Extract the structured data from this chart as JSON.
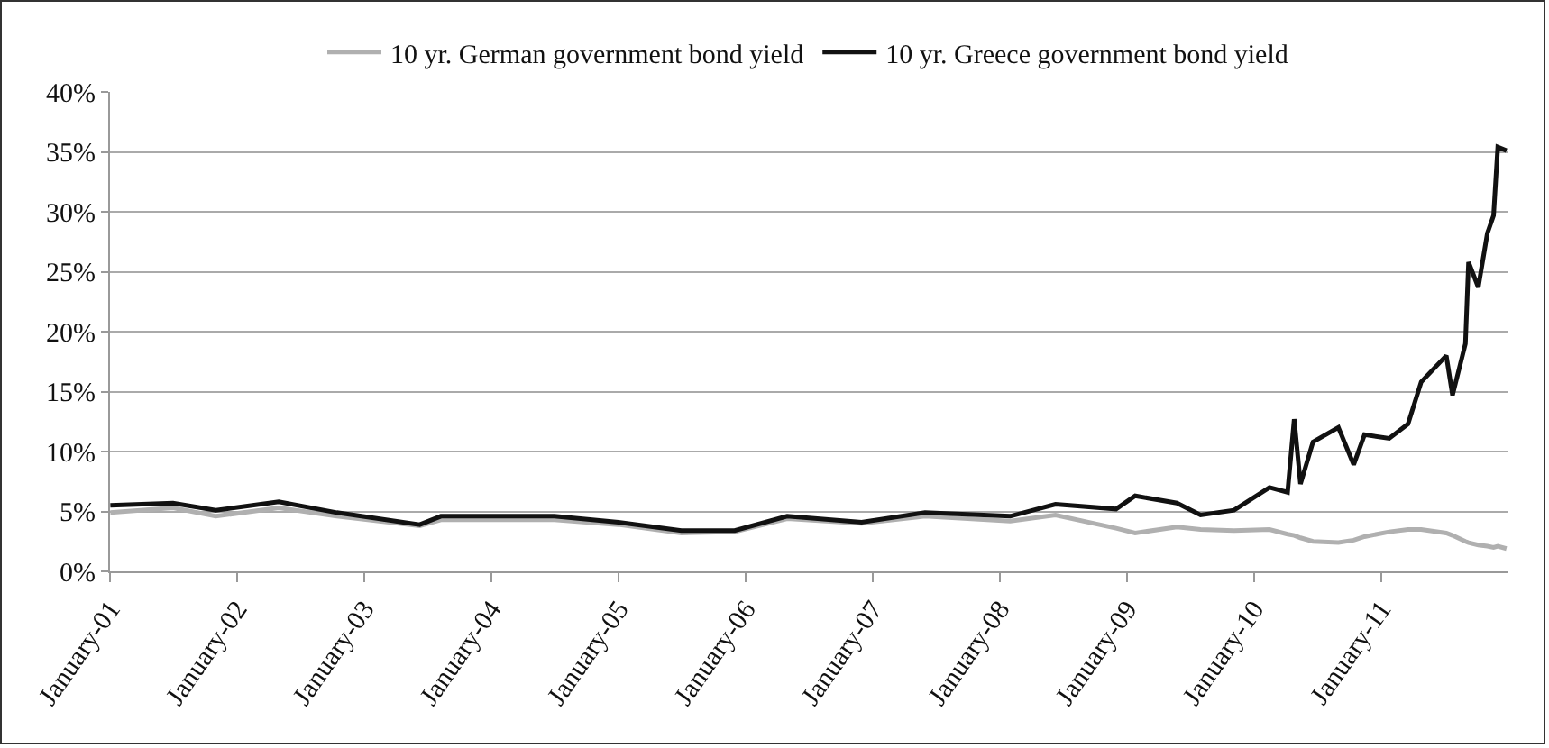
{
  "chart_data": {
    "type": "line",
    "x": [
      "2001-01-02",
      "2001-07-01",
      "2001-11-01",
      "2002-05-01",
      "2002-10-15",
      "2003-06-10",
      "2003-08-10",
      "2004-07-01",
      "2005-01-01",
      "2005-07-01",
      "2005-12-01",
      "2006-05-01",
      "2006-12-01",
      "2007-06-01",
      "2008-02-01",
      "2008-06-10",
      "2008-12-01",
      "2009-01-25",
      "2009-05-25",
      "2009-08-01",
      "2009-11-05",
      "2010-02-15",
      "2010-04-08",
      "2010-04-27",
      "2010-05-15",
      "2010-06-20",
      "2010-09-01",
      "2010-10-15",
      "2010-11-15",
      "2011-01-25",
      "2011-03-20",
      "2011-04-27",
      "2011-07-08",
      "2011-07-26",
      "2011-09-01",
      "2011-09-10",
      "2011-10-08",
      "2011-11-03",
      "2011-11-21",
      "2011-12-03",
      "2011-12-28"
    ],
    "series": [
      {
        "name": "10 yr. German government bond yield",
        "color": "#b0b0b0",
        "values": [
          4.9,
          5.3,
          4.6,
          5.3,
          4.6,
          3.8,
          4.3,
          4.3,
          3.9,
          3.2,
          3.3,
          4.4,
          4.0,
          4.6,
          4.2,
          4.7,
          3.6,
          3.2,
          3.7,
          3.5,
          3.4,
          3.5,
          3.1,
          3.0,
          2.8,
          2.5,
          2.4,
          2.6,
          2.9,
          3.3,
          3.5,
          3.5,
          3.2,
          3.0,
          2.5,
          2.4,
          2.2,
          2.1,
          2.0,
          2.1,
          1.9
        ]
      },
      {
        "name": "10 yr. Greece government bond yield",
        "color": "#111111",
        "values": [
          5.5,
          5.7,
          5.1,
          5.8,
          4.9,
          3.9,
          4.6,
          4.6,
          4.1,
          3.4,
          3.4,
          4.6,
          4.1,
          4.9,
          4.6,
          5.6,
          5.2,
          6.3,
          5.7,
          4.7,
          5.1,
          7.0,
          6.6,
          12.7,
          7.3,
          10.8,
          12.0,
          8.9,
          11.4,
          11.1,
          12.3,
          15.8,
          18.0,
          14.7,
          19.0,
          25.8,
          23.7,
          28.2,
          29.7,
          35.4,
          35.1
        ]
      }
    ],
    "xlim": [
      "2001-01-01",
      "2011-12-31"
    ],
    "xticks": [
      {
        "value": "2001-01-01",
        "label": "January-01"
      },
      {
        "value": "2002-01-01",
        "label": "January-02"
      },
      {
        "value": "2003-01-01",
        "label": "January-03"
      },
      {
        "value": "2004-01-01",
        "label": "January-04"
      },
      {
        "value": "2005-01-01",
        "label": "January-05"
      },
      {
        "value": "2006-01-01",
        "label": "January-06"
      },
      {
        "value": "2007-01-01",
        "label": "January-07"
      },
      {
        "value": "2008-01-01",
        "label": "January-08"
      },
      {
        "value": "2009-01-01",
        "label": "January-09"
      },
      {
        "value": "2010-01-01",
        "label": "January-10"
      },
      {
        "value": "2011-01-01",
        "label": "January-11"
      }
    ],
    "ylim": [
      0,
      40
    ],
    "yticks": [
      {
        "value": 0,
        "label": "0%"
      },
      {
        "value": 5,
        "label": "5%"
      },
      {
        "value": 10,
        "label": "10%"
      },
      {
        "value": 15,
        "label": "15%"
      },
      {
        "value": 20,
        "label": "20%"
      },
      {
        "value": 25,
        "label": "25%"
      },
      {
        "value": 30,
        "label": "30%"
      },
      {
        "value": 35,
        "label": "35%"
      },
      {
        "value": 40,
        "label": "40%"
      }
    ],
    "grid": "y",
    "legend": "top",
    "marker": "none",
    "line_style": "solid"
  }
}
